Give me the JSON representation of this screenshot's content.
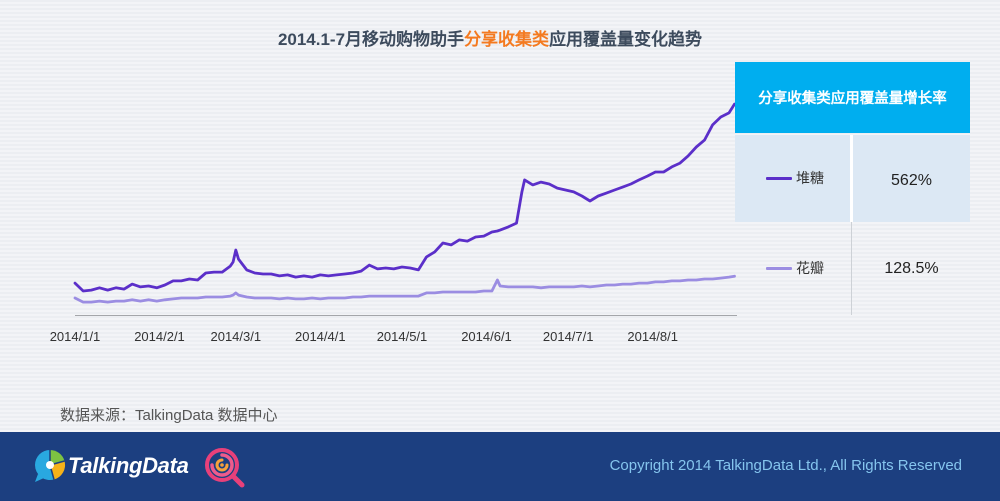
{
  "chart_data": {
    "type": "line",
    "title": {
      "lead": "2014.1-7月移动购物助手",
      "highlight": "分享收集类",
      "tail": "应用覆盖量变化趋势"
    },
    "x_ticks": [
      "2014/1/1",
      "2014/2/1",
      "2014/3/1",
      "2014/4/1",
      "2014/5/1",
      "2014/6/1",
      "2014/7/1",
      "2014/8/1"
    ],
    "x": [
      "2014/1/1",
      "2014/1/4",
      "2014/1/7",
      "2014/1/10",
      "2014/1/13",
      "2014/1/16",
      "2014/1/19",
      "2014/1/22",
      "2014/1/25",
      "2014/1/28",
      "2014/1/31",
      "2014/2/3",
      "2014/2/6",
      "2014/2/9",
      "2014/2/12",
      "2014/2/15",
      "2014/2/18",
      "2014/2/21",
      "2014/2/24",
      "2014/2/27",
      "2014/2/28",
      "2014/3/1",
      "2014/3/2",
      "2014/3/5",
      "2014/3/8",
      "2014/3/11",
      "2014/3/14",
      "2014/3/17",
      "2014/3/20",
      "2014/3/23",
      "2014/3/26",
      "2014/3/29",
      "2014/4/1",
      "2014/4/4",
      "2014/4/7",
      "2014/4/10",
      "2014/4/13",
      "2014/4/16",
      "2014/4/19",
      "2014/4/22",
      "2014/4/25",
      "2014/4/28",
      "2014/5/1",
      "2014/5/4",
      "2014/5/7",
      "2014/5/10",
      "2014/5/13",
      "2014/5/16",
      "2014/5/19",
      "2014/5/22",
      "2014/5/25",
      "2014/5/28",
      "2014/5/31",
      "2014/6/3",
      "2014/6/5",
      "2014/6/6",
      "2014/6/9",
      "2014/6/12",
      "2014/6/14",
      "2014/6/15",
      "2014/6/18",
      "2014/6/21",
      "2014/6/24",
      "2014/6/27",
      "2014/6/30",
      "2014/7/3",
      "2014/7/6",
      "2014/7/9",
      "2014/7/12",
      "2014/7/15",
      "2014/7/18",
      "2014/7/21",
      "2014/7/24",
      "2014/7/27",
      "2014/7/30",
      "2014/8/2",
      "2014/8/5",
      "2014/8/8",
      "2014/8/11",
      "2014/8/14",
      "2014/8/17",
      "2014/8/20",
      "2014/8/23",
      "2014/8/26",
      "2014/8/29",
      "2014/8/31"
    ],
    "ylim": [
      0,
      700
    ],
    "grid": false,
    "legend": "right",
    "series": [
      {
        "name": "堆糖",
        "color": "#5b2fc9",
        "values": [
          101,
          76,
          79,
          86,
          79,
          86,
          82,
          98,
          89,
          92,
          86,
          95,
          108,
          108,
          114,
          111,
          133,
          136,
          136,
          155,
          168,
          206,
          177,
          143,
          133,
          130,
          130,
          124,
          127,
          120,
          124,
          120,
          127,
          124,
          127,
          130,
          133,
          139,
          158,
          146,
          149,
          146,
          152,
          149,
          143,
          184,
          200,
          228,
          222,
          238,
          234,
          247,
          250,
          263,
          266,
          269,
          279,
          291,
          390,
          428,
          412,
          421,
          415,
          402,
          396,
          390,
          377,
          361,
          377,
          386,
          396,
          405,
          415,
          428,
          440,
          453,
          453,
          469,
          481,
          504,
          532,
          554,
          602,
          627,
          640,
          668
        ]
      },
      {
        "name": "花瓣",
        "color": "#9b8de2",
        "values": [
          54,
          41,
          41,
          44,
          41,
          44,
          44,
          48,
          44,
          48,
          44,
          48,
          51,
          54,
          54,
          54,
          57,
          57,
          57,
          60,
          63,
          70,
          63,
          57,
          54,
          54,
          54,
          51,
          54,
          51,
          51,
          54,
          51,
          54,
          54,
          54,
          57,
          57,
          60,
          60,
          60,
          60,
          60,
          60,
          60,
          70,
          70,
          73,
          73,
          73,
          73,
          73,
          76,
          76,
          111,
          92,
          89,
          89,
          89,
          89,
          89,
          86,
          89,
          89,
          89,
          89,
          92,
          89,
          92,
          95,
          95,
          98,
          98,
          101,
          101,
          105,
          105,
          108,
          108,
          111,
          111,
          114,
          114,
          117,
          120,
          123
        ]
      }
    ]
  },
  "growth_table": {
    "header": "分享收集类应用覆盖量增长率",
    "values": [
      "562%",
      "128.5%"
    ]
  },
  "source": "数据来源：TalkingData 数据中心",
  "footer": {
    "brand": "TalkingData",
    "copyright": "Copyright 2014 TalkingData Ltd., All Rights Reserved"
  },
  "icons": {
    "brand_logo": "talkingdata-logo-icon",
    "partner_logo": "swirl-magnifier-icon"
  },
  "colors": {
    "title_highlight": "#f47a20",
    "table_header": "#00aeef",
    "table_row_highlight": "#dce8f4",
    "footer": "#1c3f80",
    "copyright_text": "#85c5ee"
  }
}
